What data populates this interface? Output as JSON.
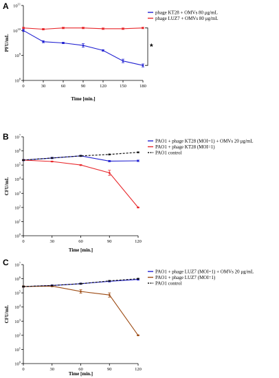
{
  "chart_data": [
    {
      "panel": "A",
      "type": "line",
      "xlabel": "Time [min.]",
      "ylabel": "PFU/mL",
      "x": [
        0,
        30,
        60,
        90,
        120,
        150,
        180
      ],
      "xticks": [
        "0",
        "30",
        "60",
        "90",
        "120",
        "150",
        "180"
      ],
      "xlim": [
        0,
        180
      ],
      "ylim_log10": [
        8,
        11
      ],
      "yticks": [
        {
          "base": "10",
          "exp": "8"
        },
        {
          "base": "10",
          "exp": "9"
        },
        {
          "base": "10",
          "exp": "10"
        },
        {
          "base": "10",
          "exp": "11"
        }
      ],
      "series": [
        {
          "name": "phage KT28 + OMVs 80 μg/mL",
          "color": "#1f1fd1",
          "dash": false,
          "log10_values": [
            10.0,
            9.55,
            9.5,
            9.4,
            9.2,
            8.78,
            8.6
          ],
          "log10_err": [
            0.04,
            0.04,
            0.03,
            0.07,
            0.03,
            0.07,
            0.06
          ]
        },
        {
          "name": "phage LUZ7 + OMVs 80 μg/mL",
          "color": "#e8262a",
          "dash": false,
          "log10_values": [
            10.1,
            10.05,
            10.1,
            10.1,
            10.07,
            10.07,
            10.1
          ],
          "log10_err": [
            0.03,
            0.03,
            0.03,
            0.03,
            0.03,
            0.03,
            0.03
          ]
        }
      ],
      "annotation": "*"
    },
    {
      "panel": "B",
      "type": "line",
      "xlabel": "Time [min.]",
      "ylabel": "CFU/mL",
      "x": [
        0,
        30,
        60,
        90,
        120
      ],
      "xticks": [
        "0",
        "30",
        "60",
        "90",
        "120"
      ],
      "xlim": [
        0,
        120
      ],
      "ylim_log10": [
        0,
        7
      ],
      "yticks": [
        {
          "base": "10",
          "exp": "0"
        },
        {
          "base": "10",
          "exp": "1"
        },
        {
          "base": "10",
          "exp": "2"
        },
        {
          "base": "10",
          "exp": "3"
        },
        {
          "base": "10",
          "exp": "4"
        },
        {
          "base": "10",
          "exp": "5"
        },
        {
          "base": "10",
          "exp": "6"
        },
        {
          "base": "10",
          "exp": "7"
        }
      ],
      "series": [
        {
          "name": "PAO1 + phage KT28 (MOI=1) + OMVs 20 μg/mL",
          "color": "#1f1fd1",
          "dash": false,
          "log10_values": [
            5.35,
            5.5,
            5.65,
            5.28,
            5.3
          ],
          "log10_err": [
            0.05,
            0.05,
            0.05,
            0.05,
            0.05
          ]
        },
        {
          "name": "PAO1 + phage KT28 (MOI=1)",
          "color": "#e8262a",
          "dash": false,
          "log10_values": [
            5.35,
            5.25,
            5.0,
            4.45,
            2.0
          ],
          "log10_err": [
            0.03,
            0.03,
            0.03,
            0.18,
            0.03
          ]
        },
        {
          "name": "PAO1 control",
          "color": "#111111",
          "dash": true,
          "log10_values": [
            5.35,
            5.5,
            5.65,
            5.75,
            5.9
          ],
          "log10_err": [
            0.03,
            0.03,
            0.03,
            0.03,
            0.03
          ]
        }
      ]
    },
    {
      "panel": "C",
      "type": "line",
      "xlabel": "Time [min.]",
      "ylabel": "CFU/mL",
      "x": [
        0,
        30,
        60,
        90,
        120
      ],
      "xticks": [
        "0",
        "30",
        "60",
        "90",
        "120"
      ],
      "xlim": [
        0,
        120
      ],
      "ylim_log10": [
        0,
        7
      ],
      "yticks": [
        {
          "base": "10",
          "exp": "0"
        },
        {
          "base": "10",
          "exp": "1"
        },
        {
          "base": "10",
          "exp": "2"
        },
        {
          "base": "10",
          "exp": "3"
        },
        {
          "base": "10",
          "exp": "4"
        },
        {
          "base": "10",
          "exp": "5"
        },
        {
          "base": "10",
          "exp": "6"
        },
        {
          "base": "10",
          "exp": "7"
        }
      ],
      "series": [
        {
          "name": "PAO1 + phage LUZ7 (MOI=1) + OMVs 20 μg/mL",
          "color": "#1f1fd1",
          "dash": false,
          "log10_values": [
            5.45,
            5.52,
            5.65,
            5.82,
            5.95
          ],
          "log10_err": [
            0.05,
            0.05,
            0.05,
            0.05,
            0.05
          ]
        },
        {
          "name": "PAO1 + phage LUZ7 (MOI=1)",
          "color": "#9c4a12",
          "dash": false,
          "log10_values": [
            5.45,
            5.48,
            5.1,
            4.85,
            2.0
          ],
          "log10_err": [
            0.05,
            0.05,
            0.12,
            0.15,
            0.03
          ]
        },
        {
          "name": "PAO1 control",
          "color": "#111111",
          "dash": true,
          "log10_values": [
            5.45,
            5.52,
            5.65,
            5.85,
            6.0
          ],
          "log10_err": [
            0.03,
            0.03,
            0.03,
            0.03,
            0.03
          ]
        }
      ]
    }
  ]
}
